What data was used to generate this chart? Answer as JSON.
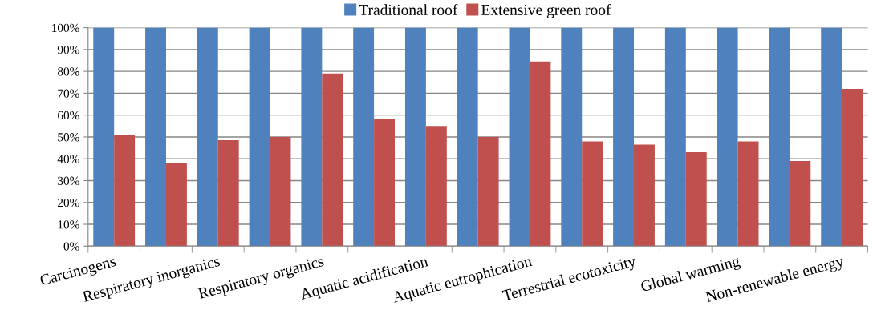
{
  "chart_data": {
    "type": "bar",
    "categories": [
      "Carcinogens",
      null,
      "Respiratory inorganics",
      null,
      "Respiratory organics",
      null,
      "Aquatic acidification",
      null,
      "Aquatic eutrophication",
      null,
      "Terrestrial ecotoxicity",
      null,
      "Global warming",
      null,
      "Non-renewable energy"
    ],
    "series": [
      {
        "name": "Traditional roof",
        "color": "#4f81bd",
        "values": [
          100,
          100,
          100,
          100,
          100,
          100,
          100,
          100,
          100,
          100,
          100,
          100,
          100,
          100,
          100
        ]
      },
      {
        "name": "Extensive green roof",
        "color": "#c0504d",
        "values": [
          51,
          38,
          48.5,
          50,
          79,
          58,
          55,
          50,
          84.5,
          48,
          46.5,
          43,
          48,
          39,
          72
        ]
      }
    ],
    "ylim": [
      0,
      100
    ],
    "yticks": [
      {
        "value": 0,
        "label": "0%"
      },
      {
        "value": 10,
        "label": "10%"
      },
      {
        "value": 20,
        "label": "20%"
      },
      {
        "value": 30,
        "label": "30%"
      },
      {
        "value": 40,
        "label": "40%"
      },
      {
        "value": 50,
        "label": "50%"
      },
      {
        "value": 60,
        "label": "60%"
      },
      {
        "value": 70,
        "label": "70%"
      },
      {
        "value": 80,
        "label": "80%"
      },
      {
        "value": 90,
        "label": "90%"
      },
      {
        "value": 100,
        "label": "100%"
      }
    ],
    "grid": "y",
    "legend": "top"
  }
}
